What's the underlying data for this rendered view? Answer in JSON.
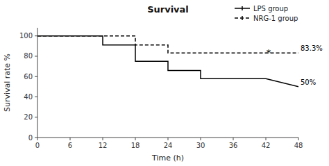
{
  "chart_data": {
    "type": "line",
    "title": "Survival",
    "x_label": "Time (h)",
    "y_label": "Survival rate %",
    "xlim": [
      0,
      48
    ],
    "ylim": [
      0,
      108
    ],
    "xticks": [
      0,
      6,
      12,
      18,
      24,
      30,
      36,
      42,
      48
    ],
    "yticks": [
      0,
      20,
      40,
      60,
      80,
      100
    ],
    "grid": false,
    "legend": "upper right",
    "series": [
      {
        "name": "LPS group",
        "color": "#000000",
        "line_style": "solid",
        "x": [
          0,
          12,
          12,
          18,
          18,
          24,
          24,
          30,
          30,
          36,
          36,
          42,
          42,
          48
        ],
        "values": [
          100,
          100,
          91,
          91,
          75,
          75,
          66,
          66,
          58,
          58,
          58,
          58,
          58,
          50
        ]
      },
      {
        "name": "NRG-1 group",
        "color": "#000000",
        "line_style": "dashed",
        "x": [
          0,
          18,
          18,
          24,
          24,
          48
        ],
        "values": [
          100,
          100,
          91,
          91,
          83.3,
          83.3
        ]
      }
    ],
    "annotations": [
      {
        "text": "50%",
        "x": 48,
        "y": 50,
        "color": "#000000"
      },
      {
        "text": "83.3%",
        "x": 48,
        "y": 83.3,
        "color": "#000000"
      },
      {
        "text": "*",
        "x": 42.5,
        "y": 85,
        "color": "#000000"
      }
    ]
  }
}
